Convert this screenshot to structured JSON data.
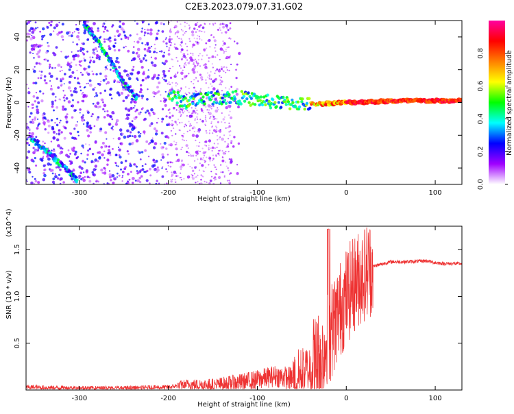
{
  "title": "C2E3.2023.079.07.31.G02",
  "chart_data": [
    {
      "type": "heatmap",
      "xlabel": "Height of straight line (km)",
      "ylabel": "Frequency (Hz)",
      "xlim": [
        -360,
        130
      ],
      "ylim": [
        -50,
        50
      ],
      "x_ticks": [
        -300,
        -200,
        -100,
        0,
        100
      ],
      "y_ticks": [
        40,
        20,
        0,
        -20,
        -40
      ],
      "colorbar": {
        "label": "Normalized spectral amplitude",
        "range": [
          0,
          1
        ],
        "ticks": [
          "0.0",
          "0.2",
          "0.4",
          "0.6",
          "0.8"
        ],
        "colors": [
          "#ffffff",
          "#a000ff",
          "#0000ff",
          "#00ffff",
          "#00ff00",
          "#ffff00",
          "#ff8000",
          "#ff0000",
          "#ff00a0"
        ]
      },
      "traces": [
        {
          "name": "",
          "points": [
            [
              -355,
              -22
            ],
            [
              -340,
              -28
            ],
            [
              -325,
              -36
            ],
            [
              -310,
              -43
            ],
            [
              -302,
              -48
            ]
          ]
        },
        {
          "name": "",
          "points": [
            [
              -295,
              48
            ],
            [
              -280,
              38
            ],
            [
              -265,
              25
            ],
            [
              -250,
              12
            ],
            [
              -235,
              2
            ]
          ]
        },
        {
          "name": "",
          "points": [
            [
              -200,
              5
            ],
            [
              -180,
              0
            ],
            [
              -160,
              3
            ],
            [
              -120,
              3
            ],
            [
              -80,
              0
            ],
            [
              -40,
              -1
            ],
            [
              0,
              0
            ],
            [
              60,
              1
            ],
            [
              130,
              1
            ]
          ]
        }
      ],
      "grid": false
    },
    {
      "type": "line",
      "xlabel": "Height of straight line (km)",
      "ylabel": "SNR (10 * v/v)",
      "y_multiplier_label": "(x10^4)",
      "xlim": [
        -360,
        130
      ],
      "ylim": [
        0,
        1.75
      ],
      "x_ticks": [
        -300,
        -200,
        -100,
        0,
        100
      ],
      "y_ticks": [
        0.5,
        1.0,
        1.5
      ],
      "series": [
        {
          "name": "",
          "color": "#ee3333",
          "x": [
            -360,
            -300,
            -250,
            -200,
            -180,
            -150,
            -120,
            -100,
            -80,
            -60,
            -40,
            -30,
            -20,
            -10,
            0,
            10,
            20,
            30,
            50,
            70,
            90,
            100,
            110,
            130
          ],
          "y": [
            0.03,
            0.02,
            0.02,
            0.03,
            0.06,
            0.05,
            0.08,
            0.11,
            0.15,
            0.12,
            0.25,
            0.35,
            0.55,
            0.8,
            1.0,
            1.15,
            1.25,
            1.32,
            1.37,
            1.37,
            1.38,
            1.36,
            1.35,
            1.35
          ]
        }
      ],
      "grid": false
    }
  ]
}
